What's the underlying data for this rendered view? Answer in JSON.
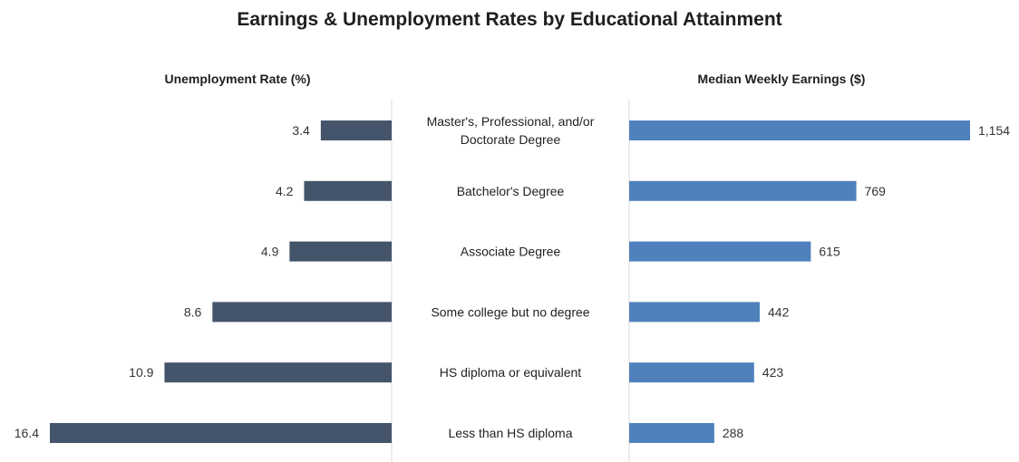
{
  "chart_data": {
    "type": "bar",
    "title": "Earnings & Unemployment Rates by Educational Attainment",
    "categories": [
      [
        "Master's, Professional, and/or",
        "Doctorate Degree"
      ],
      [
        "Batchelor's Degree"
      ],
      [
        "Associate Degree"
      ],
      [
        "Some college but no degree"
      ],
      [
        "HS diploma or equivalent"
      ],
      [
        "Less than HS diploma"
      ]
    ],
    "series": [
      {
        "name": "Unemployment Rate (%)",
        "values": [
          3.4,
          4.2,
          4.9,
          8.6,
          10.9,
          16.4
        ],
        "value_labels": [
          "3.4",
          "4.2",
          "4.9",
          "8.6",
          "10.9",
          "16.4"
        ],
        "color": "#44546a",
        "direction": "left"
      },
      {
        "name": "Median Weekly Earnings ($)",
        "values": [
          1154,
          769,
          615,
          442,
          423,
          288
        ],
        "value_labels": [
          "1,154",
          "769",
          "615",
          "442",
          "423",
          "288"
        ],
        "color": "#4f81bd",
        "direction": "right"
      }
    ],
    "axis_ranges": {
      "unemployment": [
        0,
        16.4
      ],
      "earnings": [
        0,
        1154
      ]
    },
    "grid": false,
    "legend": "none"
  }
}
